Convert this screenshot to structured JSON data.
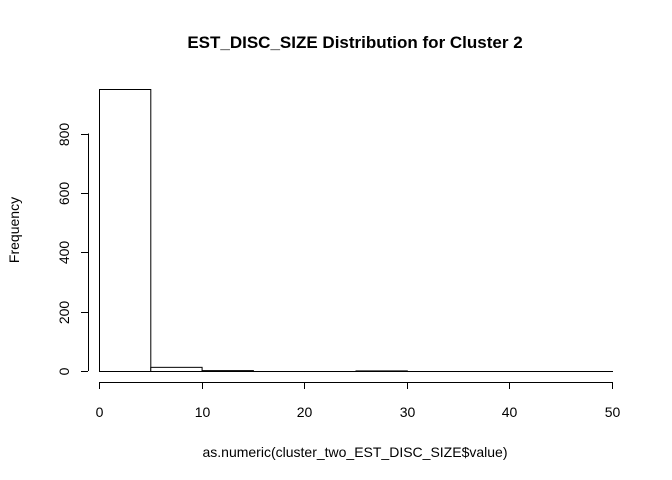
{
  "chart_data": {
    "type": "bar",
    "title": "EST_DISC_SIZE Distribution for Cluster 2",
    "xlabel": "as.numeric(cluster_two_EST_DISC_SIZE$value)",
    "ylabel": "Frequency",
    "bins": [
      {
        "from": 0,
        "to": 5,
        "count": 950
      },
      {
        "from": 5,
        "to": 10,
        "count": 14
      },
      {
        "from": 10,
        "to": 15,
        "count": 3
      },
      {
        "from": 15,
        "to": 20,
        "count": 0
      },
      {
        "from": 20,
        "to": 25,
        "count": 0
      },
      {
        "from": 25,
        "to": 30,
        "count": 2
      },
      {
        "from": 30,
        "to": 35,
        "count": 0
      },
      {
        "from": 35,
        "to": 40,
        "count": 0
      },
      {
        "from": 40,
        "to": 45,
        "count": 0
      },
      {
        "from": 45,
        "to": 50,
        "count": 0
      }
    ],
    "xlim": [
      0,
      50
    ],
    "ylim": [
      0,
      950
    ],
    "x_ticks": [
      "0",
      "10",
      "20",
      "30",
      "40",
      "50"
    ],
    "y_ticks": [
      "0",
      "200",
      "400",
      "600",
      "800"
    ],
    "grid": false,
    "legend": "none"
  }
}
